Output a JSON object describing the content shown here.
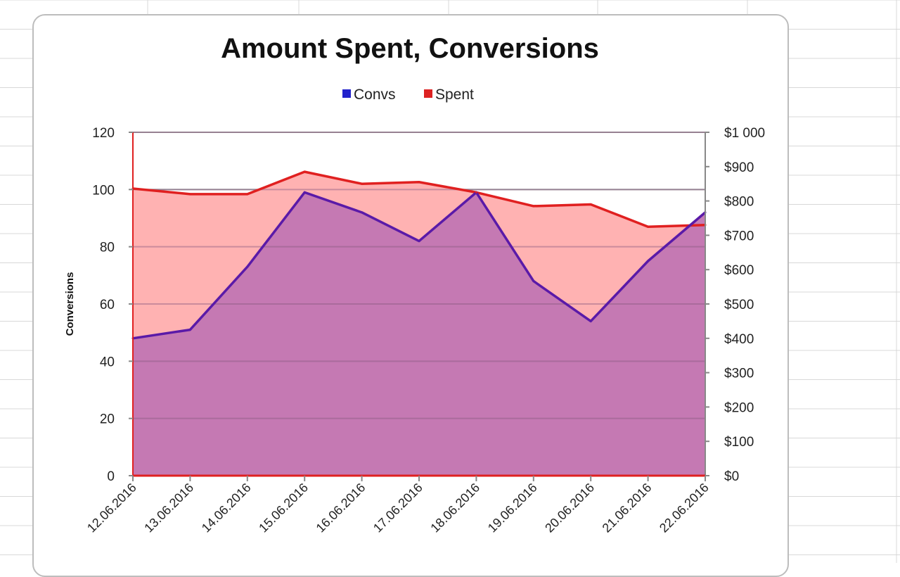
{
  "chart_data": {
    "type": "area",
    "title": "Amount Spent, Conversions",
    "ylabel": "Conversions",
    "categories": [
      "12.06.2016",
      "13.06.2016",
      "14.06.2016",
      "15.06.2016",
      "16.06.2016",
      "17.06.2016",
      "18.06.2016",
      "19.06.2016",
      "20.06.2016",
      "21.06.2016",
      "22.06.2016"
    ],
    "series": [
      {
        "name": "Convs",
        "axis": "left",
        "color": "#2222cc",
        "values": [
          48,
          51,
          73,
          99,
          92,
          82,
          99,
          68,
          54,
          75,
          92
        ]
      },
      {
        "name": "Spent",
        "axis": "right",
        "color": "#dd2222",
        "values": [
          836,
          820,
          820,
          885,
          850,
          855,
          825,
          785,
          790,
          725,
          730
        ]
      }
    ],
    "ylim_left": [
      0,
      120
    ],
    "yticks_left": [
      "0",
      "20",
      "40",
      "60",
      "80",
      "100",
      "120"
    ],
    "ylim_right": [
      0,
      1000
    ],
    "yticks_right": [
      "$0",
      "$100",
      "$200",
      "$300",
      "$400",
      "$500",
      "$600",
      "$700",
      "$800",
      "$900",
      "$1 000"
    ],
    "legend_position": "top",
    "grid": true,
    "colors": {
      "convs_fill": "#c276b3",
      "spent_fill": "#ffb2b2",
      "convs_line": "#5a1aa8",
      "spent_line": "#e02020",
      "grid": "#a0a0a0"
    }
  }
}
